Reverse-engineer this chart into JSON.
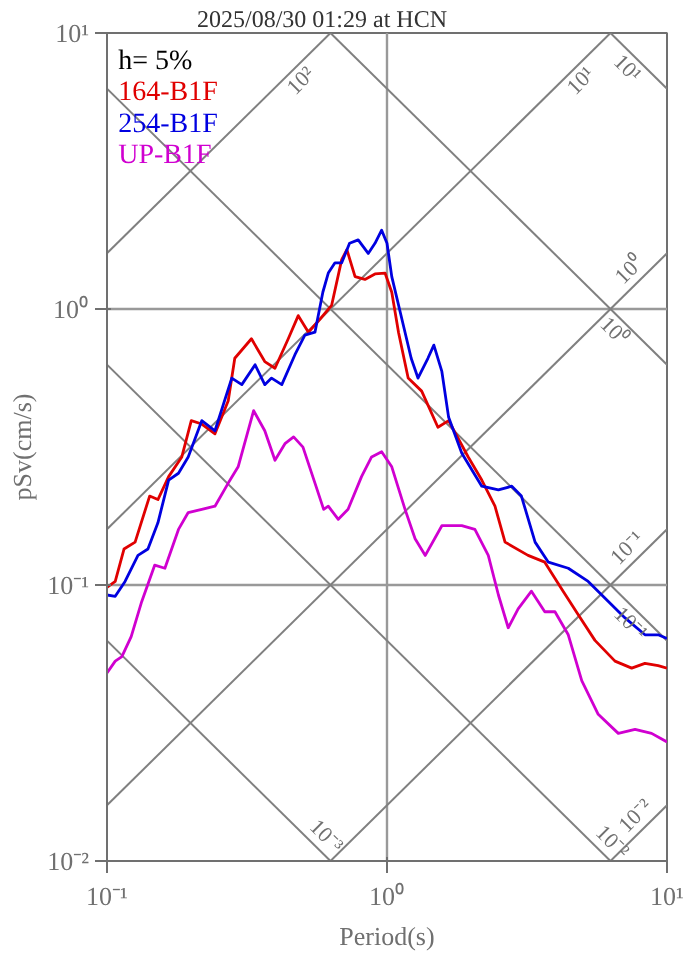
{
  "chart_data": {
    "type": "line",
    "title": "2025/08/30 01:29 at HCN",
    "xlabel": "Period(s)",
    "ylabel": "pSv(cm/s)",
    "legend_title": "h= 5%",
    "legend": "top left",
    "log": "xy",
    "grid": true,
    "xlim": [
      0.1,
      10
    ],
    "ylim": [
      0.01,
      10
    ],
    "xticks": [
      {
        "value": 0.1,
        "label": "10⁻¹"
      },
      {
        "value": 1,
        "label": "10⁰"
      },
      {
        "value": 10,
        "label": "10¹"
      }
    ],
    "yticks": [
      {
        "value": 0.01,
        "label": "10⁻²"
      },
      {
        "value": 0.1,
        "label": "10⁻¹"
      },
      {
        "value": 1,
        "label": "10⁰"
      },
      {
        "value": 10,
        "label": "10¹"
      }
    ],
    "series": [
      {
        "color": "#808080",
        "x": [
          0.1,
          0.6283
        ],
        "values": [
          1.592,
          10
        ]
      },
      {
        "color": "#808080",
        "x": [
          0.1,
          6.283
        ],
        "values": [
          0.1592,
          10
        ]
      },
      {
        "color": "#808080",
        "x": [
          0.1,
          10
        ],
        "values": [
          0.01592,
          1.592
        ]
      },
      {
        "color": "#808080",
        "x": [
          0.6283,
          10
        ],
        "values": [
          0.01,
          0.1592
        ]
      },
      {
        "color": "#808080",
        "x": [
          6.283,
          10
        ],
        "values": [
          0.01,
          0.01592
        ]
      },
      {
        "color": "#808080",
        "x": [
          6.283,
          10
        ],
        "values": [
          10,
          6.283
        ]
      },
      {
        "color": "#808080",
        "x": [
          0.6283,
          10
        ],
        "values": [
          10,
          0.6283
        ]
      },
      {
        "color": "#808080",
        "x": [
          0.1,
          10
        ],
        "values": [
          6.283,
          0.06283
        ]
      },
      {
        "color": "#808080",
        "x": [
          0.1,
          6.283
        ],
        "values": [
          0.6283,
          0.01
        ]
      },
      {
        "color": "#808080",
        "x": [
          0.1,
          0.6283
        ],
        "values": [
          0.06283,
          0.01
        ]
      },
      {
        "name": "164-B1F",
        "color": "#e00000",
        "x": [
          0.1,
          0.107,
          0.115,
          0.126,
          0.142,
          0.152,
          0.166,
          0.185,
          0.2,
          0.218,
          0.243,
          0.271,
          0.286,
          0.328,
          0.366,
          0.398,
          0.444,
          0.482,
          0.524,
          0.577,
          0.634,
          0.689,
          0.719,
          0.769,
          0.834,
          0.906,
          0.984,
          1.04,
          1.1,
          1.19,
          1.33,
          1.52,
          1.66,
          1.95,
          2.18,
          2.43,
          2.64,
          3.19,
          3.66,
          4.2,
          4.82,
          5.53,
          6.52,
          7.48,
          8.34,
          9.3,
          10
        ],
        "values": [
          0.098,
          0.103,
          0.135,
          0.143,
          0.21,
          0.204,
          0.247,
          0.291,
          0.394,
          0.383,
          0.353,
          0.465,
          0.663,
          0.78,
          0.645,
          0.61,
          0.78,
          0.946,
          0.824,
          0.92,
          1.03,
          1.51,
          1.64,
          1.31,
          1.28,
          1.34,
          1.35,
          1.15,
          0.82,
          0.562,
          0.504,
          0.373,
          0.394,
          0.291,
          0.24,
          0.193,
          0.143,
          0.128,
          0.121,
          0.097,
          0.078,
          0.063,
          0.053,
          0.05,
          0.052,
          0.051,
          0.05
        ]
      },
      {
        "name": "254-B1F",
        "color": "#0000e0",
        "x": [
          0.1,
          0.107,
          0.116,
          0.129,
          0.14,
          0.152,
          0.166,
          0.18,
          0.195,
          0.218,
          0.243,
          0.279,
          0.303,
          0.338,
          0.366,
          0.387,
          0.421,
          0.469,
          0.509,
          0.553,
          0.59,
          0.617,
          0.652,
          0.689,
          0.735,
          0.789,
          0.857,
          0.906,
          0.957,
          1.0,
          1.04,
          1.13,
          1.22,
          1.29,
          1.4,
          1.47,
          1.57,
          1.66,
          1.85,
          2.18,
          2.5,
          2.79,
          3.02,
          3.38,
          3.77,
          4.44,
          5.23,
          5.85,
          7.08,
          8.34,
          9.3,
          10
        ],
        "values": [
          0.092,
          0.091,
          0.103,
          0.128,
          0.135,
          0.168,
          0.24,
          0.254,
          0.291,
          0.394,
          0.362,
          0.562,
          0.532,
          0.628,
          0.532,
          0.562,
          0.532,
          0.683,
          0.804,
          0.824,
          1.15,
          1.35,
          1.47,
          1.47,
          1.73,
          1.78,
          1.59,
          1.73,
          1.93,
          1.73,
          1.31,
          0.92,
          0.663,
          0.562,
          0.663,
          0.74,
          0.594,
          0.405,
          0.3,
          0.228,
          0.221,
          0.228,
          0.21,
          0.143,
          0.121,
          0.115,
          0.103,
          0.092,
          0.076,
          0.066,
          0.066,
          0.064
        ]
      },
      {
        "name": "UP-B1F",
        "color": "#d000d0",
        "x": [
          0.1,
          0.107,
          0.113,
          0.122,
          0.133,
          0.148,
          0.161,
          0.18,
          0.195,
          0.218,
          0.243,
          0.271,
          0.294,
          0.334,
          0.366,
          0.398,
          0.432,
          0.464,
          0.501,
          0.553,
          0.594,
          0.617,
          0.67,
          0.726,
          0.811,
          0.881,
          0.957,
          1.04,
          1.16,
          1.26,
          1.37,
          1.57,
          1.85,
          2.06,
          2.3,
          2.5,
          2.71,
          2.94,
          3.28,
          3.66,
          3.98,
          4.44,
          4.96,
          5.68,
          6.7,
          7.69,
          8.81,
          10
        ],
        "values": [
          0.048,
          0.053,
          0.055,
          0.065,
          0.087,
          0.118,
          0.115,
          0.159,
          0.183,
          0.188,
          0.193,
          0.234,
          0.268,
          0.428,
          0.362,
          0.283,
          0.325,
          0.344,
          0.316,
          0.234,
          0.188,
          0.193,
          0.173,
          0.188,
          0.247,
          0.291,
          0.304,
          0.268,
          0.188,
          0.147,
          0.128,
          0.164,
          0.164,
          0.159,
          0.128,
          0.092,
          0.07,
          0.082,
          0.095,
          0.08,
          0.08,
          0.066,
          0.045,
          0.034,
          0.029,
          0.03,
          0.029,
          0.027
        ]
      }
    ],
    "annotations": [
      {
        "text": "10²",
        "x": 0.456,
        "y": 7.26
      },
      {
        "text": "10¹",
        "x": 4.56,
        "y": 7.26
      },
      {
        "text": "10¹",
        "x": 7.8,
        "y": 8.055
      },
      {
        "text": "10⁰",
        "x": 8.0,
        "y": 1.273
      },
      {
        "text": "10⁰",
        "x": 7.0,
        "y": 0.8976
      },
      {
        "text": "10⁻¹",
        "x": 7.85,
        "y": 0.1249
      },
      {
        "text": "10⁻¹",
        "x": 8.0,
        "y": 0.0785
      },
      {
        "text": "10⁻³",
        "x": 0.557,
        "y": 0.01128
      },
      {
        "text": "10⁻²",
        "x": 5.85,
        "y": 0.01074
      },
      {
        "text": "10⁻²",
        "x": 8.4,
        "y": 0.01337
      }
    ]
  }
}
